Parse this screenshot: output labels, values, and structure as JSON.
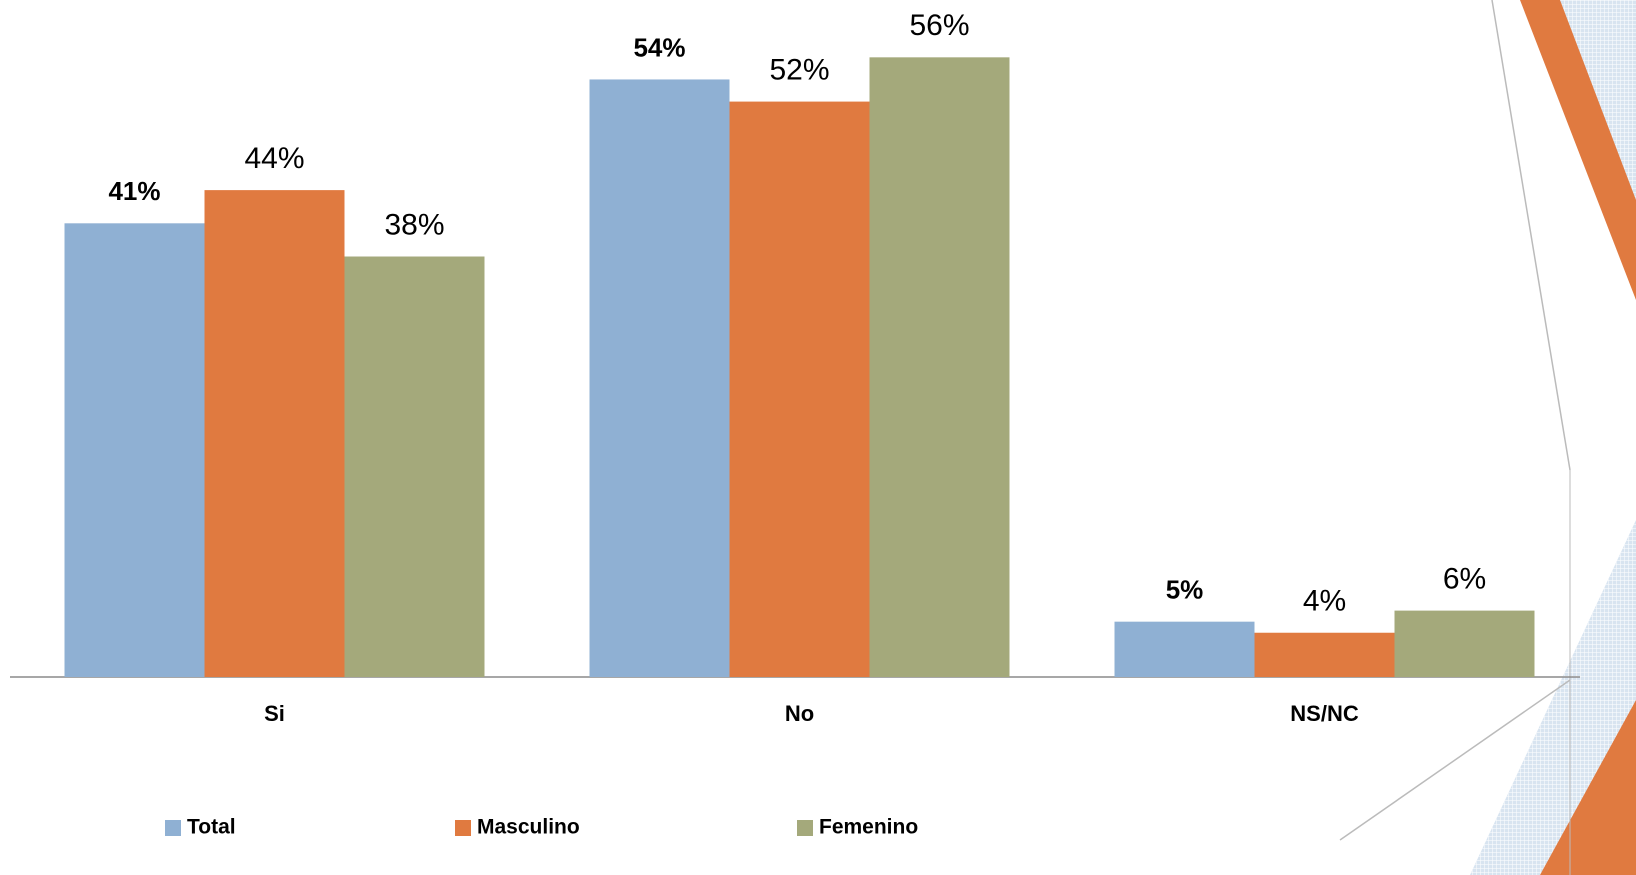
{
  "chart_data": {
    "type": "bar",
    "categories": [
      "Si",
      "No",
      "NS/NC"
    ],
    "series": [
      {
        "name": "Total",
        "color": "#8fb0d3",
        "values": [
          41,
          54,
          5
        ],
        "value_labels": [
          "41%",
          "54%",
          "5%"
        ]
      },
      {
        "name": "Masculino",
        "color": "#e07a40",
        "values": [
          44,
          52,
          4
        ],
        "value_labels": [
          "44%",
          "52%",
          "4%"
        ]
      },
      {
        "name": "Femenino",
        "color": "#a4a97b",
        "values": [
          38,
          56,
          6
        ],
        "value_labels": [
          "38%",
          "56%",
          "6%"
        ]
      }
    ],
    "ylim": [
      0,
      61
    ],
    "legend": "bottom"
  }
}
